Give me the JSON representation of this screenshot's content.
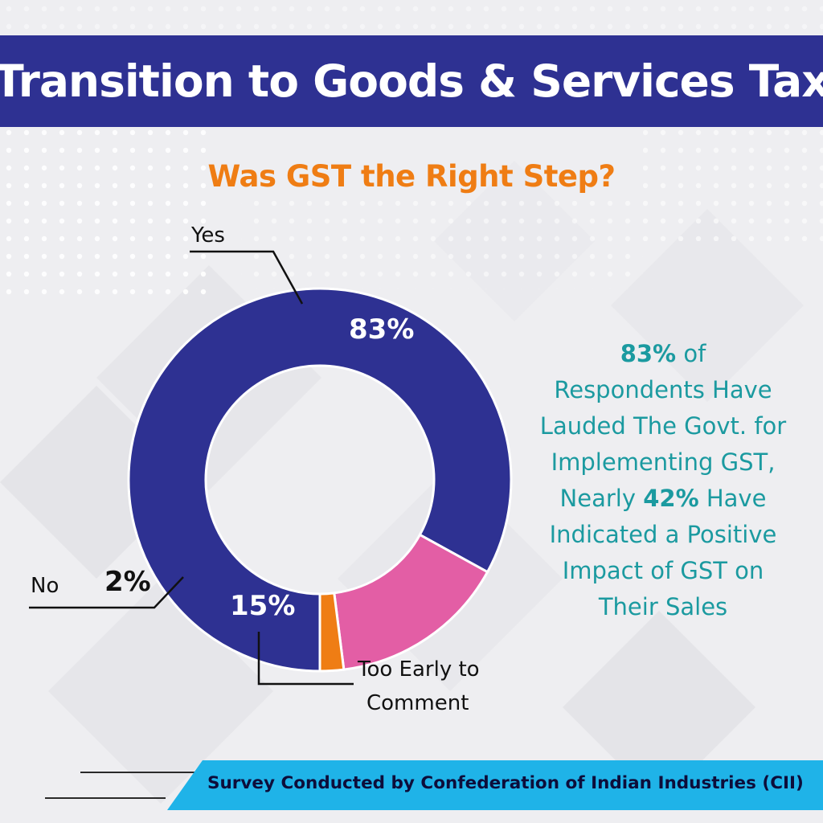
{
  "header": {
    "title": "Transition to Goods & Services Tax"
  },
  "question": "Was GST the Right Step?",
  "chart_data": {
    "type": "pie",
    "variant": "donut",
    "categories": [
      "Yes",
      "Too Early to Comment",
      "No"
    ],
    "values": [
      83,
      15,
      2
    ],
    "value_labels": [
      "83%",
      "15%",
      "2%"
    ],
    "colors": [
      "#2e3192",
      "#e35ea5",
      "#ef7d14"
    ],
    "label_lines": [
      "Yes",
      "Too Early to",
      "Comment",
      "No"
    ]
  },
  "note": {
    "pct1": "83%",
    "line1": " of",
    "line2": "Respondents Have",
    "line3": "Lauded The Govt. for",
    "line4": "Implementing GST,",
    "line5a": "Nearly ",
    "pct2": "42%",
    "line5b": " Have",
    "line6": "Indicated a Positive",
    "line7": "Impact of GST on",
    "line8": "Their Sales"
  },
  "footer": {
    "text": "Survey Conducted by Confederation of Indian Industries (CII)"
  },
  "colors": {
    "header_bg": "#2e3192",
    "question": "#ef7d14",
    "note": "#1b9aa0",
    "footer_bg": "#1fb3e8"
  }
}
